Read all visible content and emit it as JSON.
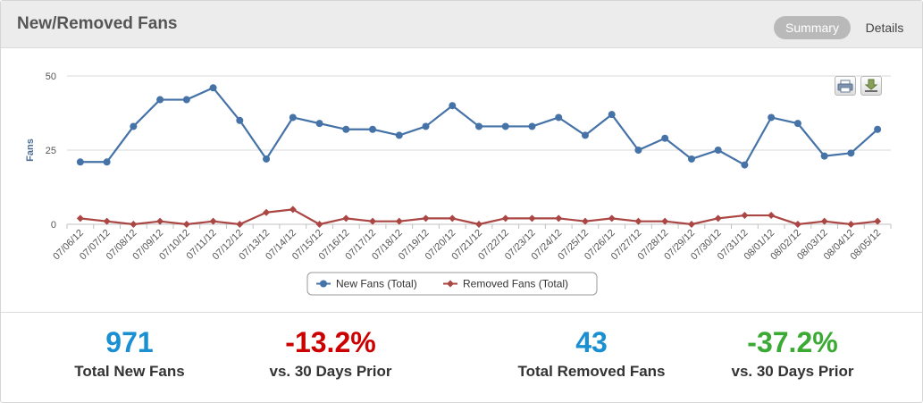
{
  "header": {
    "title": "New/Removed Fans",
    "summary_label": "Summary",
    "details_label": "Details"
  },
  "toolbar": {
    "print_icon": "printer-icon",
    "export_icon": "download-icon"
  },
  "chart_data": {
    "type": "line",
    "title": "",
    "xlabel": "",
    "ylabel": "Fans",
    "ylim": [
      0,
      50
    ],
    "yticks": [
      0,
      25,
      50
    ],
    "grid": true,
    "legend_position": "bottom-center",
    "categories": [
      "07/06/12",
      "07/07/12",
      "07/08/12",
      "07/09/12",
      "07/10/12",
      "07/11/12",
      "07/12/12",
      "07/13/12",
      "07/14/12",
      "07/15/12",
      "07/16/12",
      "07/17/12",
      "07/18/12",
      "07/19/12",
      "07/20/12",
      "07/21/12",
      "07/22/12",
      "07/23/12",
      "07/24/12",
      "07/25/12",
      "07/26/12",
      "07/27/12",
      "07/28/12",
      "07/29/12",
      "07/30/12",
      "07/31/12",
      "08/01/12",
      "08/02/12",
      "08/03/12",
      "08/04/12",
      "08/05/12"
    ],
    "series": [
      {
        "name": "New Fans (Total)",
        "color": "#4572a7",
        "marker": "circle",
        "values": [
          21,
          21,
          33,
          42,
          42,
          46,
          35,
          22,
          36,
          34,
          32,
          32,
          30,
          33,
          40,
          33,
          33,
          33,
          36,
          30,
          37,
          25,
          29,
          22,
          25,
          20,
          36,
          34,
          23,
          24,
          32
        ]
      },
      {
        "name": "Removed Fans (Total)",
        "color": "#aa4643",
        "marker": "diamond",
        "values": [
          2,
          1,
          0,
          1,
          0,
          1,
          0,
          4,
          5,
          0,
          2,
          1,
          1,
          2,
          2,
          0,
          2,
          2,
          2,
          1,
          2,
          1,
          1,
          0,
          2,
          3,
          3,
          0,
          1,
          0,
          1
        ]
      }
    ]
  },
  "stats": [
    {
      "value": "971",
      "label": "Total New Fans",
      "color": "#1a8fd1"
    },
    {
      "value": "-13.2%",
      "label": "vs. 30 Days Prior",
      "color": "#cc0000"
    },
    {
      "value": "43",
      "label": "Total Removed Fans",
      "color": "#1a8fd1"
    },
    {
      "value": "-37.2%",
      "label": "vs. 30 Days Prior",
      "color": "#3aaa35"
    }
  ]
}
